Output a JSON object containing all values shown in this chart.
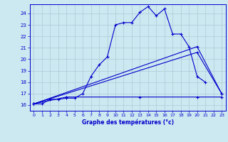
{
  "xlabel": "Graphe des températures (°c)",
  "bg_color": "#cce8f0",
  "grid_color": "#aaccd8",
  "line_color": "#0000cc",
  "xlim": [
    -0.5,
    23.5
  ],
  "ylim": [
    15.5,
    24.8
  ],
  "yticks": [
    16,
    17,
    18,
    19,
    20,
    21,
    22,
    23,
    24
  ],
  "xticks": [
    0,
    1,
    2,
    3,
    4,
    5,
    6,
    7,
    8,
    9,
    10,
    11,
    12,
    13,
    14,
    15,
    16,
    17,
    18,
    19,
    20,
    21,
    22,
    23
  ],
  "series": {
    "temp_actual": {
      "x": [
        0,
        1,
        2,
        3,
        4,
        5,
        6,
        7,
        8,
        9,
        10,
        11,
        12,
        13,
        14,
        15,
        16,
        17,
        18,
        19,
        20,
        21,
        22,
        23
      ],
      "y": [
        16.1,
        16.1,
        16.5,
        16.5,
        16.6,
        16.6,
        17.0,
        18.5,
        19.5,
        20.2,
        23.0,
        23.2,
        23.2,
        24.1,
        24.6,
        23.8,
        24.4,
        22.2,
        22.2,
        21.1,
        18.5,
        18.0,
        null,
        null
      ]
    },
    "line_upper": {
      "x": [
        0,
        20,
        23
      ],
      "y": [
        16.1,
        21.1,
        17.0
      ]
    },
    "line_lower": {
      "x": [
        0,
        20,
        23
      ],
      "y": [
        16.1,
        20.6,
        17.0
      ]
    },
    "line_flat": {
      "x": [
        0,
        4,
        13,
        20,
        23
      ],
      "y": [
        16.1,
        16.7,
        16.7,
        16.7,
        16.7
      ]
    }
  }
}
